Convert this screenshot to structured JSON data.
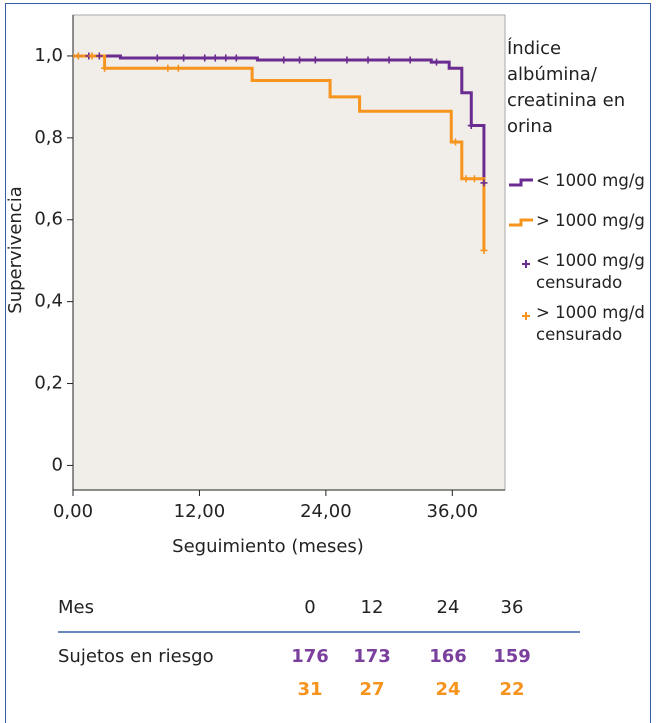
{
  "chart_data": {
    "type": "step",
    "x_label": "Seguimiento (meses)",
    "y_label": "Supervivencia",
    "legend_title": "Índice albúmina/ creatinina en orina",
    "xlim": [
      0,
      41
    ],
    "ylim": [
      -0.06,
      1.1
    ],
    "xticks": [
      {
        "value": 0,
        "label": "0,00"
      },
      {
        "value": 12,
        "label": "12,00"
      },
      {
        "value": 24,
        "label": "24,00"
      },
      {
        "value": 36,
        "label": "36,00"
      }
    ],
    "yticks": [
      0,
      {
        "value": 0.2,
        "label": "0,2"
      },
      {
        "value": 0.4,
        "label": "0,4"
      },
      {
        "value": 0.6,
        "label": "0,6"
      },
      {
        "value": 0.8,
        "label": "0,8"
      },
      {
        "value": 1,
        "label": "1,0"
      }
    ],
    "plot_background": "#f1ede8",
    "series": [
      {
        "name": "< 1000 mg/g",
        "color": "#6a2c91",
        "kind": "step",
        "x": [
          0,
          4.5,
          17.5,
          34,
          35.7,
          36.9,
          37.8,
          39
        ],
        "values": [
          1,
          0.995,
          0.99,
          0.985,
          0.97,
          0.91,
          0.83,
          0.69
        ]
      },
      {
        "name": "> 1000 mg/g",
        "color": "#f7941d",
        "kind": "step",
        "x": [
          0,
          3,
          17,
          24.4,
          27.2,
          35.9,
          36.9,
          39
        ],
        "values": [
          1,
          0.97,
          0.94,
          0.9,
          0.865,
          0.79,
          0.7,
          0.525
        ]
      },
      {
        "name": "< 1000 mg/g censurado",
        "color": "#6a2c91",
        "kind": "censor",
        "x": [
          0.5,
          1.5,
          2.5,
          8,
          10.5,
          12.5,
          13.5,
          14.5,
          15.5,
          20,
          21.5,
          23,
          26,
          28,
          30,
          32,
          34.5,
          37.8,
          39
        ],
        "values": [
          1,
          1,
          1,
          0.995,
          0.995,
          0.995,
          0.995,
          0.995,
          0.995,
          0.99,
          0.99,
          0.99,
          0.99,
          0.99,
          0.99,
          0.99,
          0.985,
          0.83,
          0.69
        ]
      },
      {
        "name": "> 1000 mg/d censurado",
        "color": "#f7941d",
        "kind": "censor",
        "x": [
          0.5,
          1.8,
          3,
          9,
          10,
          36.3,
          37.3,
          38.1,
          39
        ],
        "values": [
          1,
          1,
          0.97,
          0.97,
          0.97,
          0.79,
          0.7,
          0.7,
          0.525
        ]
      }
    ]
  },
  "risk_table": {
    "header_label": "Mes",
    "months": [
      0,
      12,
      24,
      36
    ],
    "row_label": "Sujetos en riesgo",
    "rows": [
      {
        "color": "#7b3f9e",
        "values": [
          176,
          173,
          166,
          159
        ]
      },
      {
        "color": "#f7941d",
        "values": [
          31,
          27,
          24,
          22
        ]
      }
    ]
  }
}
